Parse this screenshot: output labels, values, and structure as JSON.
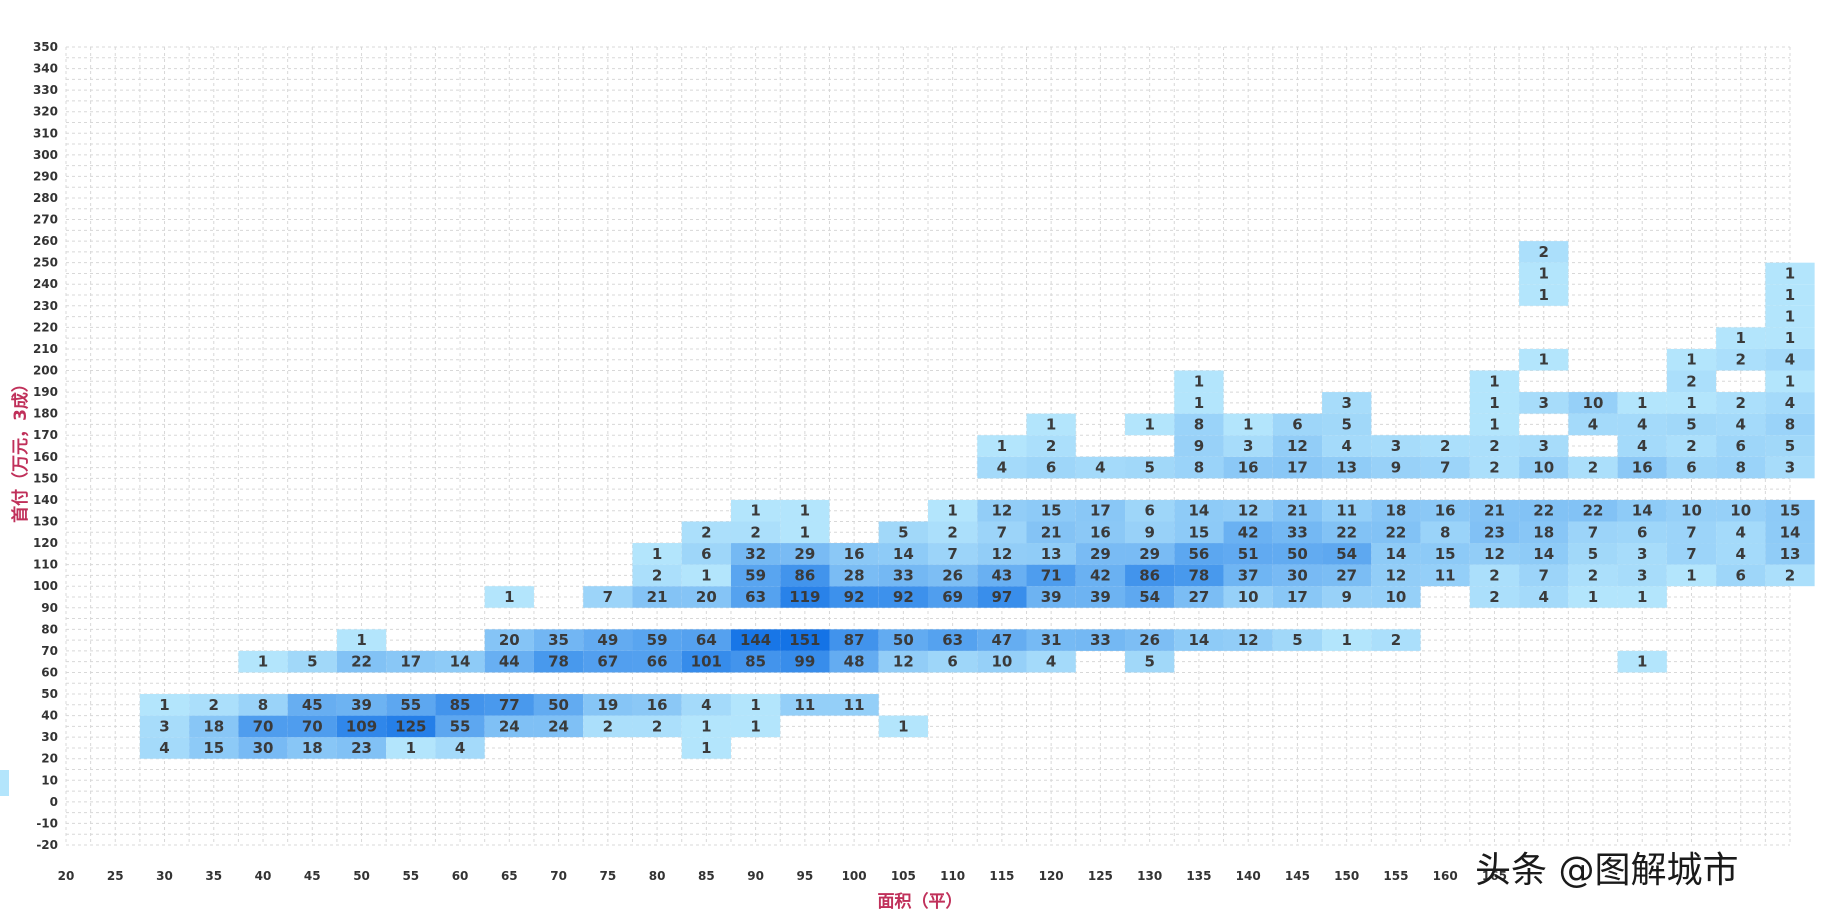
{
  "chart_data": {
    "type": "heatmap",
    "title": "",
    "xlabel": "面积（平）",
    "ylabel": "首付（万元，3成）",
    "x_ticks": [
      20,
      25,
      30,
      35,
      40,
      45,
      50,
      55,
      60,
      65,
      70,
      75,
      80,
      85,
      90,
      95,
      100,
      105,
      110,
      115,
      120,
      125,
      130,
      135,
      140,
      145,
      150,
      155,
      160,
      165
    ],
    "y_ticks": [
      -20,
      -10,
      0,
      10,
      20,
      30,
      40,
      50,
      60,
      70,
      80,
      90,
      100,
      110,
      120,
      130,
      140,
      150,
      160,
      170,
      180,
      190,
      200,
      210,
      220,
      230,
      240,
      250,
      260,
      270,
      280,
      290,
      300,
      310,
      320,
      330,
      340,
      350
    ],
    "xlim": [
      20,
      195
    ],
    "ylim": [
      -20,
      350
    ],
    "grid": true,
    "x_bin": 5,
    "y_bin": 10,
    "cells": [
      [
        30,
        20,
        4
      ],
      [
        35,
        20,
        15
      ],
      [
        40,
        20,
        30
      ],
      [
        45,
        20,
        18
      ],
      [
        50,
        20,
        23
      ],
      [
        55,
        20,
        1
      ],
      [
        60,
        20,
        4
      ],
      [
        85,
        20,
        1
      ],
      [
        30,
        30,
        3
      ],
      [
        35,
        30,
        18
      ],
      [
        40,
        30,
        70
      ],
      [
        45,
        30,
        70
      ],
      [
        50,
        30,
        109
      ],
      [
        55,
        30,
        125
      ],
      [
        60,
        30,
        55
      ],
      [
        65,
        30,
        24
      ],
      [
        70,
        30,
        24
      ],
      [
        75,
        30,
        2
      ],
      [
        80,
        30,
        2
      ],
      [
        85,
        30,
        1
      ],
      [
        90,
        30,
        1
      ],
      [
        105,
        30,
        1
      ],
      [
        30,
        40,
        1
      ],
      [
        35,
        40,
        2
      ],
      [
        40,
        40,
        8
      ],
      [
        45,
        40,
        45
      ],
      [
        50,
        40,
        39
      ],
      [
        55,
        40,
        55
      ],
      [
        60,
        40,
        85
      ],
      [
        65,
        40,
        77
      ],
      [
        70,
        40,
        50
      ],
      [
        75,
        40,
        19
      ],
      [
        80,
        40,
        16
      ],
      [
        85,
        40,
        4
      ],
      [
        90,
        40,
        1
      ],
      [
        95,
        40,
        11
      ],
      [
        100,
        40,
        11
      ],
      [
        40,
        60,
        1
      ],
      [
        45,
        60,
        5
      ],
      [
        50,
        60,
        22
      ],
      [
        55,
        60,
        17
      ],
      [
        60,
        60,
        14
      ],
      [
        65,
        60,
        44
      ],
      [
        70,
        60,
        78
      ],
      [
        75,
        60,
        67
      ],
      [
        80,
        60,
        66
      ],
      [
        85,
        60,
        101
      ],
      [
        90,
        60,
        85
      ],
      [
        95,
        60,
        99
      ],
      [
        100,
        60,
        48
      ],
      [
        105,
        60,
        12
      ],
      [
        110,
        60,
        6
      ],
      [
        115,
        60,
        10
      ],
      [
        120,
        60,
        4
      ],
      [
        130,
        60,
        5
      ],
      [
        180,
        60,
        1
      ],
      [
        50,
        70,
        1
      ],
      [
        65,
        70,
        20
      ],
      [
        70,
        70,
        35
      ],
      [
        75,
        70,
        49
      ],
      [
        80,
        70,
        59
      ],
      [
        85,
        70,
        64
      ],
      [
        90,
        70,
        144
      ],
      [
        95,
        70,
        151
      ],
      [
        100,
        70,
        87
      ],
      [
        105,
        70,
        50
      ],
      [
        110,
        70,
        63
      ],
      [
        115,
        70,
        47
      ],
      [
        120,
        70,
        31
      ],
      [
        125,
        70,
        33
      ],
      [
        130,
        70,
        26
      ],
      [
        135,
        70,
        14
      ],
      [
        140,
        70,
        12
      ],
      [
        145,
        70,
        5
      ],
      [
        150,
        70,
        1
      ],
      [
        155,
        70,
        2
      ],
      [
        65,
        90,
        1
      ],
      [
        75,
        90,
        7
      ],
      [
        80,
        90,
        21
      ],
      [
        85,
        90,
        20
      ],
      [
        90,
        90,
        63
      ],
      [
        95,
        90,
        119
      ],
      [
        100,
        90,
        92
      ],
      [
        105,
        90,
        92
      ],
      [
        110,
        90,
        69
      ],
      [
        115,
        90,
        97
      ],
      [
        120,
        90,
        39
      ],
      [
        125,
        90,
        39
      ],
      [
        130,
        90,
        54
      ],
      [
        135,
        90,
        27
      ],
      [
        140,
        90,
        10
      ],
      [
        145,
        90,
        17
      ],
      [
        150,
        90,
        9
      ],
      [
        155,
        90,
        10
      ],
      [
        165,
        90,
        2
      ],
      [
        170,
        90,
        4
      ],
      [
        175,
        90,
        1
      ],
      [
        180,
        90,
        1
      ],
      [
        80,
        100,
        2
      ],
      [
        85,
        100,
        1
      ],
      [
        90,
        100,
        59
      ],
      [
        95,
        100,
        86
      ],
      [
        100,
        100,
        28
      ],
      [
        105,
        100,
        33
      ],
      [
        110,
        100,
        26
      ],
      [
        115,
        100,
        43
      ],
      [
        120,
        100,
        71
      ],
      [
        125,
        100,
        42
      ],
      [
        130,
        100,
        86
      ],
      [
        135,
        100,
        78
      ],
      [
        140,
        100,
        37
      ],
      [
        145,
        100,
        30
      ],
      [
        150,
        100,
        27
      ],
      [
        155,
        100,
        12
      ],
      [
        160,
        100,
        11
      ],
      [
        165,
        100,
        2
      ],
      [
        170,
        100,
        7
      ],
      [
        175,
        100,
        2
      ],
      [
        180,
        100,
        3
      ],
      [
        185,
        100,
        1
      ],
      [
        190,
        100,
        6
      ],
      [
        195,
        100,
        2
      ],
      [
        80,
        110,
        1
      ],
      [
        85,
        110,
        6
      ],
      [
        90,
        110,
        32
      ],
      [
        95,
        110,
        29
      ],
      [
        100,
        110,
        16
      ],
      [
        105,
        110,
        14
      ],
      [
        110,
        110,
        7
      ],
      [
        115,
        110,
        12
      ],
      [
        120,
        110,
        13
      ],
      [
        125,
        110,
        29
      ],
      [
        130,
        110,
        29
      ],
      [
        135,
        110,
        56
      ],
      [
        140,
        110,
        51
      ],
      [
        145,
        110,
        50
      ],
      [
        150,
        110,
        54
      ],
      [
        155,
        110,
        14
      ],
      [
        160,
        110,
        15
      ],
      [
        165,
        110,
        12
      ],
      [
        170,
        110,
        14
      ],
      [
        175,
        110,
        5
      ],
      [
        180,
        110,
        3
      ],
      [
        185,
        110,
        7
      ],
      [
        190,
        110,
        4
      ],
      [
        195,
        110,
        13
      ],
      [
        200,
        110,
        3
      ],
      [
        205,
        110,
        1
      ],
      [
        210,
        110,
        2
      ],
      [
        85,
        120,
        2
      ],
      [
        90,
        120,
        2
      ],
      [
        95,
        120,
        1
      ],
      [
        105,
        120,
        5
      ],
      [
        110,
        120,
        2
      ],
      [
        115,
        120,
        7
      ],
      [
        120,
        120,
        21
      ],
      [
        125,
        120,
        16
      ],
      [
        130,
        120,
        9
      ],
      [
        135,
        120,
        15
      ],
      [
        140,
        120,
        42
      ],
      [
        145,
        120,
        33
      ],
      [
        150,
        120,
        22
      ],
      [
        155,
        120,
        22
      ],
      [
        160,
        120,
        8
      ],
      [
        165,
        120,
        23
      ],
      [
        170,
        120,
        18
      ],
      [
        175,
        120,
        7
      ],
      [
        180,
        120,
        6
      ],
      [
        185,
        120,
        7
      ],
      [
        190,
        120,
        4
      ],
      [
        195,
        120,
        14
      ],
      [
        200,
        120,
        6
      ],
      [
        205,
        120,
        1
      ],
      [
        210,
        120,
        5
      ],
      [
        90,
        130,
        1
      ],
      [
        95,
        130,
        1
      ],
      [
        110,
        130,
        1
      ],
      [
        115,
        130,
        12
      ],
      [
        120,
        130,
        15
      ],
      [
        125,
        130,
        17
      ],
      [
        130,
        130,
        6
      ],
      [
        135,
        130,
        14
      ],
      [
        140,
        130,
        12
      ],
      [
        145,
        130,
        21
      ],
      [
        150,
        130,
        11
      ],
      [
        155,
        130,
        18
      ],
      [
        160,
        130,
        16
      ],
      [
        165,
        130,
        21
      ],
      [
        170,
        130,
        22
      ],
      [
        175,
        130,
        22
      ],
      [
        180,
        130,
        14
      ],
      [
        185,
        130,
        10
      ],
      [
        190,
        130,
        10
      ],
      [
        195,
        130,
        15
      ],
      [
        200,
        130,
        1
      ],
      [
        205,
        130,
        5
      ],
      [
        210,
        130,
        6
      ],
      [
        115,
        150,
        4
      ],
      [
        120,
        150,
        6
      ],
      [
        125,
        150,
        4
      ],
      [
        130,
        150,
        5
      ],
      [
        135,
        150,
        8
      ],
      [
        140,
        150,
        16
      ],
      [
        145,
        150,
        17
      ],
      [
        150,
        150,
        13
      ],
      [
        155,
        150,
        9
      ],
      [
        160,
        150,
        7
      ],
      [
        165,
        150,
        2
      ],
      [
        170,
        150,
        10
      ],
      [
        175,
        150,
        2
      ],
      [
        180,
        150,
        16
      ],
      [
        185,
        150,
        6
      ],
      [
        190,
        150,
        8
      ],
      [
        195,
        150,
        3
      ],
      [
        200,
        150,
        3
      ],
      [
        205,
        150,
        1
      ],
      [
        210,
        150,
        11
      ],
      [
        115,
        160,
        1
      ],
      [
        120,
        160,
        2
      ],
      [
        135,
        160,
        9
      ],
      [
        140,
        160,
        3
      ],
      [
        145,
        160,
        12
      ],
      [
        150,
        160,
        4
      ],
      [
        155,
        160,
        3
      ],
      [
        160,
        160,
        2
      ],
      [
        165,
        160,
        2
      ],
      [
        170,
        160,
        3
      ],
      [
        180,
        160,
        4
      ],
      [
        185,
        160,
        2
      ],
      [
        190,
        160,
        6
      ],
      [
        195,
        160,
        5
      ],
      [
        200,
        160,
        3
      ],
      [
        205,
        160,
        2
      ],
      [
        210,
        160,
        3
      ],
      [
        120,
        170,
        1
      ],
      [
        130,
        170,
        1
      ],
      [
        135,
        170,
        8
      ],
      [
        140,
        170,
        1
      ],
      [
        145,
        170,
        6
      ],
      [
        150,
        170,
        5
      ],
      [
        165,
        170,
        1
      ],
      [
        175,
        170,
        4
      ],
      [
        180,
        170,
        4
      ],
      [
        185,
        170,
        5
      ],
      [
        190,
        170,
        4
      ],
      [
        195,
        170,
        8
      ],
      [
        200,
        170,
        2
      ],
      [
        205,
        170,
        4
      ],
      [
        210,
        170,
        1
      ],
      [
        135,
        180,
        1
      ],
      [
        150,
        180,
        3
      ],
      [
        165,
        180,
        1
      ],
      [
        170,
        180,
        3
      ],
      [
        175,
        180,
        10
      ],
      [
        180,
        180,
        1
      ],
      [
        185,
        180,
        1
      ],
      [
        190,
        180,
        2
      ],
      [
        195,
        180,
        4
      ],
      [
        200,
        180,
        4
      ],
      [
        205,
        180,
        6
      ],
      [
        135,
        190,
        1
      ],
      [
        165,
        190,
        1
      ],
      [
        185,
        190,
        2
      ],
      [
        195,
        190,
        1
      ],
      [
        200,
        190,
        1
      ],
      [
        205,
        190,
        2
      ],
      [
        170,
        200,
        1
      ],
      [
        185,
        200,
        1
      ],
      [
        190,
        200,
        2
      ],
      [
        195,
        200,
        4
      ],
      [
        200,
        200,
        3
      ],
      [
        205,
        200,
        1
      ],
      [
        190,
        210,
        1
      ],
      [
        195,
        210,
        1
      ],
      [
        195,
        220,
        1
      ],
      [
        210,
        220,
        1
      ],
      [
        170,
        230,
        1
      ],
      [
        195,
        230,
        1
      ],
      [
        170,
        240,
        1
      ],
      [
        195,
        240,
        1
      ],
      [
        205,
        240,
        1
      ],
      [
        170,
        250,
        2
      ]
    ],
    "legend": "left-edge color bar"
  },
  "watermark": "头条 @图解城市",
  "colors": {
    "low": "#b3e5fc",
    "mid": "#4fa8f0",
    "high": "#1473e6",
    "grid": "#d8d8d8",
    "axis_title": "#c0305a",
    "tick": "#333333"
  }
}
